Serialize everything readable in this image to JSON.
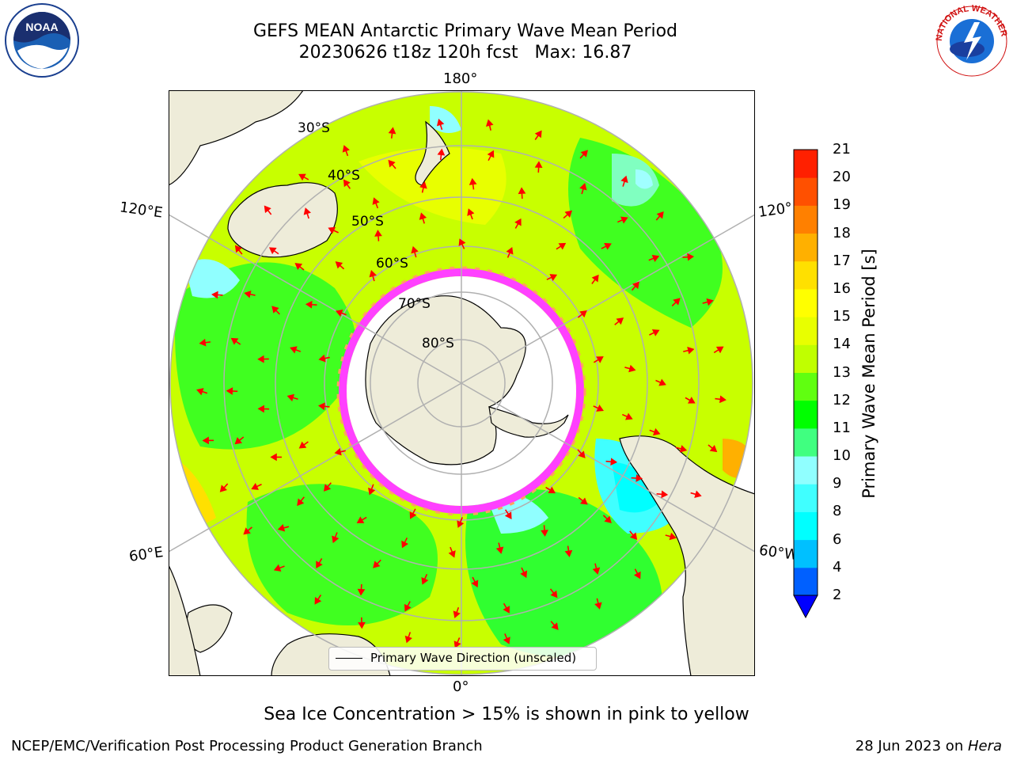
{
  "title_line1": "GEFS MEAN Antarctic Primary Wave Mean Period",
  "title_line2": "20230626 t18z 120h fcst   Max: 16.87",
  "map": {
    "lon_labels": [
      "180°",
      "120°E",
      "120°",
      "60°E",
      "60°W",
      "0°"
    ],
    "lat_labels": [
      "30°S",
      "40°S",
      "50°S",
      "60°S",
      "70°S",
      "80°S"
    ]
  },
  "legend": {
    "label": "Primary Wave Direction (unscaled)"
  },
  "colorbar": {
    "label": "Primary Wave Mean Period [s]",
    "ticks": [
      "2",
      "4",
      "6",
      "8",
      "9",
      "10",
      "11",
      "12",
      "13",
      "14",
      "15",
      "16",
      "17",
      "18",
      "19",
      "20",
      "21"
    ],
    "colors": [
      "#0060ff",
      "#00c0ff",
      "#00ffff",
      "#40ffff",
      "#90ffff",
      "#40ff80",
      "#00ff00",
      "#60ff10",
      "#c0ff00",
      "#e8ff00",
      "#ffff00",
      "#ffe000",
      "#ffb000",
      "#ff8000",
      "#ff5000",
      "#ff2000"
    ],
    "underflow_color": "#0000ff"
  },
  "note": "Sea Ice Concentration > 15% is shown in pink to yellow",
  "footer_left": "NCEP/EMC/Verification Post Processing Product Generation Branch",
  "footer_date": "28 Jun 2023 on ",
  "footer_machine": "Hera",
  "logos": {
    "left": "NOAA",
    "right": "NATIONAL WEATHER SERVICE"
  },
  "colors": {
    "land": "#eeecd9",
    "ice": "#ff40ff",
    "arrows": "#ff0000",
    "grid": "#b0b0b0"
  }
}
